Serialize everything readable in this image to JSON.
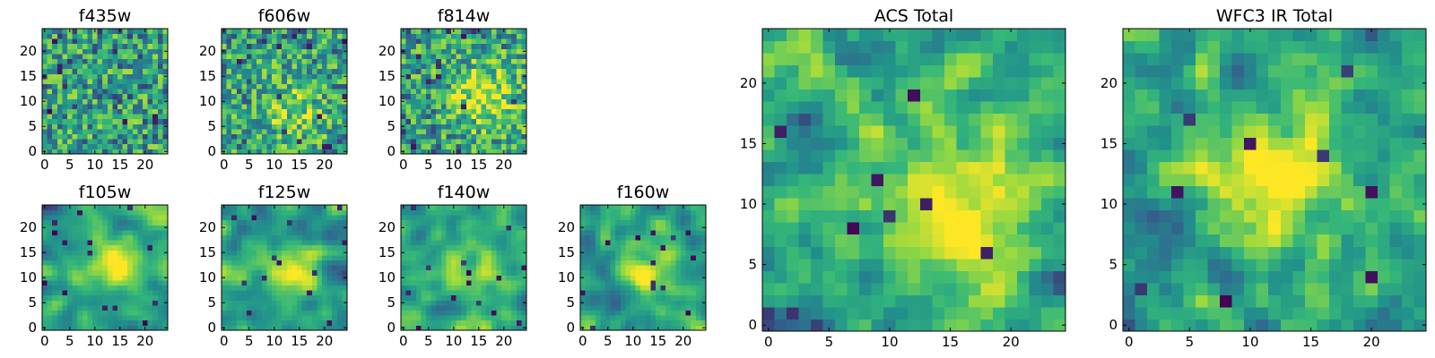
{
  "figure": {
    "colormap": [
      "#440154",
      "#31688e",
      "#21918c",
      "#35b779",
      "#90d743",
      "#fde725"
    ]
  },
  "chart_data": [
    {
      "type": "heatmap",
      "title": "f435w",
      "grid_size": [
        25,
        25
      ],
      "xlim": [
        -0.5,
        24.5
      ],
      "ylim": [
        -0.5,
        24.5
      ],
      "xticks": [
        0,
        5,
        10,
        15,
        20
      ],
      "yticks": [
        0,
        5,
        10,
        15,
        20
      ],
      "texture": "noise",
      "peak": "none"
    },
    {
      "type": "heatmap",
      "title": "f606w",
      "grid_size": [
        25,
        25
      ],
      "xlim": [
        -0.5,
        24.5
      ],
      "ylim": [
        -0.5,
        24.5
      ],
      "xticks": [
        0,
        5,
        10,
        15,
        20
      ],
      "yticks": [
        0,
        5,
        10,
        15,
        20
      ],
      "texture": "noise",
      "peak": "faint center"
    },
    {
      "type": "heatmap",
      "title": "f814w",
      "grid_size": [
        25,
        25
      ],
      "xlim": [
        -0.5,
        24.5
      ],
      "ylim": [
        -0.5,
        24.5
      ],
      "xticks": [
        0,
        5,
        10,
        15,
        20
      ],
      "yticks": [
        0,
        5,
        10,
        15,
        20
      ],
      "texture": "noise",
      "peak": "center-right"
    },
    {
      "type": "heatmap",
      "title": "f105w",
      "grid_size": [
        25,
        25
      ],
      "xlim": [
        -0.5,
        24.5
      ],
      "ylim": [
        -0.5,
        24.5
      ],
      "xticks": [
        0,
        5,
        10,
        15,
        20
      ],
      "yticks": [
        0,
        5,
        10,
        15,
        20
      ],
      "texture": "smooth",
      "peak": "center"
    },
    {
      "type": "heatmap",
      "title": "f125w",
      "grid_size": [
        25,
        25
      ],
      "xlim": [
        -0.5,
        24.5
      ],
      "ylim": [
        -0.5,
        24.5
      ],
      "xticks": [
        0,
        5,
        10,
        15,
        20
      ],
      "yticks": [
        0,
        5,
        10,
        15,
        20
      ],
      "texture": "smooth",
      "peak": "center"
    },
    {
      "type": "heatmap",
      "title": "f140w",
      "grid_size": [
        25,
        25
      ],
      "xlim": [
        -0.5,
        24.5
      ],
      "ylim": [
        -0.5,
        24.5
      ],
      "xticks": [
        0,
        5,
        10,
        15,
        20
      ],
      "yticks": [
        0,
        5,
        10,
        15,
        20
      ],
      "texture": "smooth",
      "peak": "center"
    },
    {
      "type": "heatmap",
      "title": "f160w",
      "grid_size": [
        25,
        25
      ],
      "xlim": [
        -0.5,
        24.5
      ],
      "ylim": [
        -0.5,
        24.5
      ],
      "xticks": [
        0,
        5,
        10,
        15,
        20
      ],
      "yticks": [
        0,
        5,
        10,
        15,
        20
      ],
      "texture": "smooth",
      "peak": "center"
    },
    {
      "type": "heatmap",
      "title": "ACS Total",
      "grid_size": [
        25,
        25
      ],
      "xlim": [
        -0.5,
        24.5
      ],
      "ylim": [
        -0.5,
        24.5
      ],
      "xticks": [
        0,
        5,
        10,
        15,
        20
      ],
      "yticks": [
        0,
        5,
        10,
        15,
        20
      ],
      "texture": "blocky",
      "peak": "center, y≈8-12"
    },
    {
      "type": "heatmap",
      "title": "WFC3 IR Total",
      "grid_size": [
        25,
        25
      ],
      "xlim": [
        -0.5,
        24.5
      ],
      "ylim": [
        -0.5,
        24.5
      ],
      "xticks": [
        0,
        5,
        10,
        15,
        20
      ],
      "yticks": [
        0,
        5,
        10,
        15,
        20
      ],
      "texture": "blocky",
      "peak": "center-left, y≈11-13"
    }
  ]
}
